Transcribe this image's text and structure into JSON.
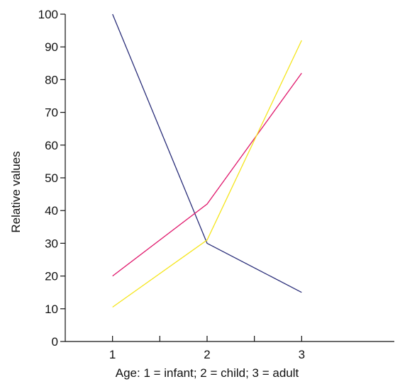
{
  "chart_data": {
    "type": "line",
    "title": "",
    "xlabel": "Age: 1 = infant; 2 = child; 3 = adult",
    "ylabel": "Relative values",
    "x": [
      1,
      2,
      3
    ],
    "x_tick_labels": [
      "1",
      "2",
      "3"
    ],
    "x_minor_ticks": [
      1.5,
      2.5
    ],
    "xlim": [
      0.5,
      3.5
    ],
    "ylim": [
      0,
      100
    ],
    "y_ticks": [
      0,
      10,
      20,
      30,
      40,
      50,
      60,
      70,
      80,
      90,
      100
    ],
    "grid": false,
    "legend": "none",
    "series": [
      {
        "color": "#2b2f7a",
        "values": [
          100,
          30,
          15
        ]
      },
      {
        "color": "#e0186c",
        "values": [
          20,
          42,
          82
        ]
      },
      {
        "color": "#f5e51c",
        "values": [
          10.5,
          31,
          92
        ]
      }
    ]
  }
}
